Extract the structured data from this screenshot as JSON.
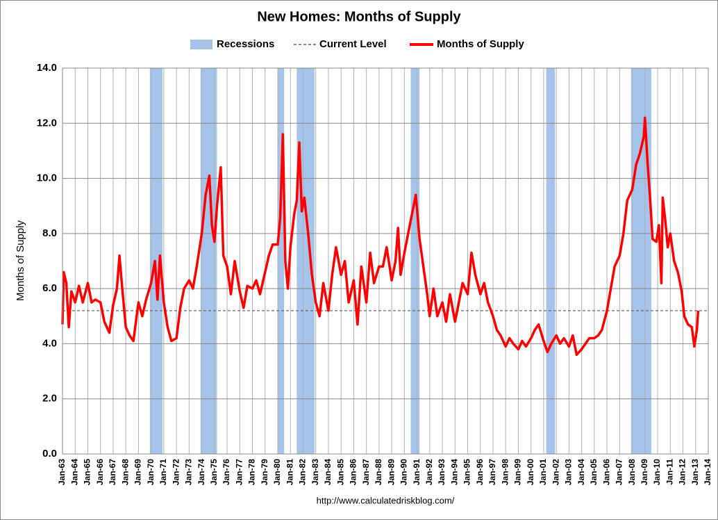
{
  "chart_data": {
    "type": "line",
    "title": "New Homes: Months of Supply",
    "y_label": "Months of Supply",
    "source": "http://www.calculatedriskblog.com/",
    "xlim": [
      1963,
      2014
    ],
    "ylim": [
      0,
      14
    ],
    "yticks": [
      {
        "value": 0,
        "label": "0.0"
      },
      {
        "value": 2,
        "label": "2.0"
      },
      {
        "value": 4,
        "label": "4.0"
      },
      {
        "value": 6,
        "label": "6.0"
      },
      {
        "value": 8,
        "label": "8.0"
      },
      {
        "value": 10,
        "label": "10.0"
      },
      {
        "value": 12,
        "label": "12.0"
      },
      {
        "value": 14,
        "label": "14.0"
      }
    ],
    "xticks": [
      {
        "value": 1963,
        "label": "Jan-63"
      },
      {
        "value": 1964,
        "label": "Jan-64"
      },
      {
        "value": 1965,
        "label": "Jan-65"
      },
      {
        "value": 1966,
        "label": "Jan-66"
      },
      {
        "value": 1967,
        "label": "Jan-67"
      },
      {
        "value": 1968,
        "label": "Jan-68"
      },
      {
        "value": 1969,
        "label": "Jan-69"
      },
      {
        "value": 1970,
        "label": "Jan-70"
      },
      {
        "value": 1971,
        "label": "Jan-71"
      },
      {
        "value": 1972,
        "label": "Jan-72"
      },
      {
        "value": 1973,
        "label": "Jan-73"
      },
      {
        "value": 1974,
        "label": "Jan-74"
      },
      {
        "value": 1975,
        "label": "Jan-75"
      },
      {
        "value": 1976,
        "label": "Jan-76"
      },
      {
        "value": 1977,
        "label": "Jan-77"
      },
      {
        "value": 1978,
        "label": "Jan-78"
      },
      {
        "value": 1979,
        "label": "Jan-79"
      },
      {
        "value": 1980,
        "label": "Jan-80"
      },
      {
        "value": 1981,
        "label": "Jan-81"
      },
      {
        "value": 1982,
        "label": "Jan-82"
      },
      {
        "value": 1983,
        "label": "Jan-83"
      },
      {
        "value": 1984,
        "label": "Jan-84"
      },
      {
        "value": 1985,
        "label": "Jan-85"
      },
      {
        "value": 1986,
        "label": "Jan-86"
      },
      {
        "value": 1987,
        "label": "Jan-87"
      },
      {
        "value": 1988,
        "label": "Jan-88"
      },
      {
        "value": 1989,
        "label": "Jan-89"
      },
      {
        "value": 1990,
        "label": "Jan-90"
      },
      {
        "value": 1991,
        "label": "Jan-91"
      },
      {
        "value": 1992,
        "label": "Jan-92"
      },
      {
        "value": 1993,
        "label": "Jan-93"
      },
      {
        "value": 1994,
        "label": "Jan-94"
      },
      {
        "value": 1995,
        "label": "Jan-95"
      },
      {
        "value": 1996,
        "label": "Jan-96"
      },
      {
        "value": 1997,
        "label": "Jan-97"
      },
      {
        "value": 1998,
        "label": "Jan-98"
      },
      {
        "value": 1999,
        "label": "Jan-99"
      },
      {
        "value": 2000,
        "label": "Jan-00"
      },
      {
        "value": 2001,
        "label": "Jan-01"
      },
      {
        "value": 2002,
        "label": "Jan-02"
      },
      {
        "value": 2003,
        "label": "Jan-03"
      },
      {
        "value": 2004,
        "label": "Jan-04"
      },
      {
        "value": 2005,
        "label": "Jan-05"
      },
      {
        "value": 2006,
        "label": "Jan-06"
      },
      {
        "value": 2007,
        "label": "Jan-07"
      },
      {
        "value": 2008,
        "label": "Jan-08"
      },
      {
        "value": 2009,
        "label": "Jan-09"
      },
      {
        "value": 2010,
        "label": "Jan-10"
      },
      {
        "value": 2011,
        "label": "Jan-11"
      },
      {
        "value": 2012,
        "label": "Jan-12"
      },
      {
        "value": 2013,
        "label": "Jan-13"
      },
      {
        "value": 2014,
        "label": "Jan-14"
      }
    ],
    "grid": true,
    "recessions": {
      "name": "Recessions",
      "color": "#a6c3ea",
      "periods": [
        [
          1969.9,
          1970.9
        ],
        [
          1973.9,
          1975.2
        ],
        [
          1980.0,
          1980.5
        ],
        [
          1981.5,
          1982.9
        ],
        [
          1990.5,
          1991.2
        ],
        [
          2001.2,
          2001.9
        ],
        [
          2007.9,
          2009.5
        ]
      ]
    },
    "current_level": {
      "name": "Current Level",
      "value": 5.2,
      "color": "#666666"
    },
    "x": [
      1963.0,
      1963.1,
      1963.3,
      1963.5,
      1963.7,
      1964.0,
      1964.3,
      1964.6,
      1965.0,
      1965.3,
      1965.6,
      1966.0,
      1966.3,
      1966.7,
      1967.0,
      1967.3,
      1967.5,
      1967.7,
      1968.0,
      1968.3,
      1968.6,
      1969.0,
      1969.3,
      1969.6,
      1970.0,
      1970.3,
      1970.5,
      1970.7,
      1971.0,
      1971.3,
      1971.6,
      1972.0,
      1972.3,
      1972.6,
      1973.0,
      1973.3,
      1973.6,
      1974.0,
      1974.3,
      1974.6,
      1974.8,
      1975.0,
      1975.2,
      1975.5,
      1975.7,
      1976.0,
      1976.3,
      1976.6,
      1977.0,
      1977.3,
      1977.6,
      1978.0,
      1978.3,
      1978.6,
      1979.0,
      1979.3,
      1979.6,
      1980.0,
      1980.2,
      1980.4,
      1980.6,
      1980.8,
      1981.0,
      1981.3,
      1981.5,
      1981.7,
      1981.9,
      1982.1,
      1982.4,
      1982.7,
      1983.0,
      1983.3,
      1983.6,
      1984.0,
      1984.3,
      1984.6,
      1985.0,
      1985.3,
      1985.6,
      1986.0,
      1986.3,
      1986.6,
      1987.0,
      1987.3,
      1987.6,
      1988.0,
      1988.3,
      1988.6,
      1989.0,
      1989.3,
      1989.5,
      1989.7,
      1990.0,
      1990.3,
      1990.6,
      1990.9,
      1991.2,
      1991.5,
      1991.8,
      1992.0,
      1992.3,
      1992.6,
      1993.0,
      1993.3,
      1993.6,
      1994.0,
      1994.3,
      1994.6,
      1995.0,
      1995.3,
      1995.6,
      1996.0,
      1996.3,
      1996.6,
      1997.0,
      1997.3,
      1997.6,
      1998.0,
      1998.3,
      1998.6,
      1999.0,
      1999.3,
      1999.6,
      2000.0,
      2000.3,
      2000.6,
      2001.0,
      2001.3,
      2001.6,
      2002.0,
      2002.3,
      2002.6,
      2003.0,
      2003.3,
      2003.6,
      2004.0,
      2004.3,
      2004.6,
      2005.0,
      2005.3,
      2005.6,
      2006.0,
      2006.3,
      2006.6,
      2007.0,
      2007.3,
      2007.6,
      2008.0,
      2008.3,
      2008.6,
      2008.9,
      2009.0,
      2009.2,
      2009.4,
      2009.6,
      2009.9,
      2010.1,
      2010.3,
      2010.4,
      2010.6,
      2010.8,
      2011.0,
      2011.3,
      2011.6,
      2011.9,
      2012.1,
      2012.4,
      2012.7,
      2012.9,
      2013.1,
      2013.2
    ],
    "series": [
      {
        "name": "Months of Supply",
        "color": "#ff0000",
        "values": [
          4.7,
          6.6,
          6.2,
          4.6,
          5.9,
          5.5,
          6.1,
          5.5,
          6.2,
          5.5,
          5.6,
          5.5,
          4.8,
          4.4,
          5.4,
          6.0,
          7.2,
          6.1,
          4.6,
          4.3,
          4.1,
          5.5,
          5.0,
          5.6,
          6.2,
          7.0,
          5.6,
          7.2,
          5.5,
          4.6,
          4.1,
          4.2,
          5.3,
          6.0,
          6.3,
          6.0,
          6.8,
          8.0,
          9.4,
          10.1,
          8.3,
          7.7,
          9.0,
          10.4,
          7.2,
          6.8,
          5.8,
          7.0,
          5.9,
          5.3,
          6.1,
          6.0,
          6.3,
          5.8,
          6.6,
          7.2,
          7.6,
          7.6,
          8.6,
          11.6,
          7.0,
          6.0,
          7.5,
          8.7,
          9.2,
          11.3,
          8.8,
          9.3,
          8.0,
          6.5,
          5.5,
          5.0,
          6.2,
          5.2,
          6.5,
          7.5,
          6.5,
          7.0,
          5.5,
          6.3,
          4.7,
          6.8,
          5.5,
          7.3,
          6.2,
          6.8,
          6.8,
          7.5,
          6.3,
          7.0,
          8.2,
          6.5,
          7.3,
          8.0,
          8.7,
          9.4,
          7.8,
          6.8,
          5.8,
          5.0,
          6.0,
          5.0,
          5.5,
          4.8,
          5.8,
          4.8,
          5.5,
          6.2,
          5.8,
          7.3,
          6.5,
          5.8,
          6.2,
          5.5,
          5.0,
          4.5,
          4.3,
          3.9,
          4.2,
          4.0,
          3.8,
          4.1,
          3.9,
          4.2,
          4.5,
          4.7,
          4.1,
          3.7,
          4.0,
          4.3,
          4.0,
          4.2,
          3.9,
          4.3,
          3.6,
          3.8,
          4.0,
          4.2,
          4.2,
          4.3,
          4.5,
          5.2,
          6.0,
          6.8,
          7.2,
          8.0,
          9.2,
          9.6,
          10.5,
          10.9,
          11.5,
          12.2,
          10.6,
          9.3,
          7.8,
          7.7,
          8.3,
          6.2,
          9.3,
          8.5,
          7.5,
          8.0,
          7.0,
          6.6,
          5.9,
          5.0,
          4.7,
          4.6,
          3.9,
          4.5,
          5.2
        ]
      }
    ]
  }
}
